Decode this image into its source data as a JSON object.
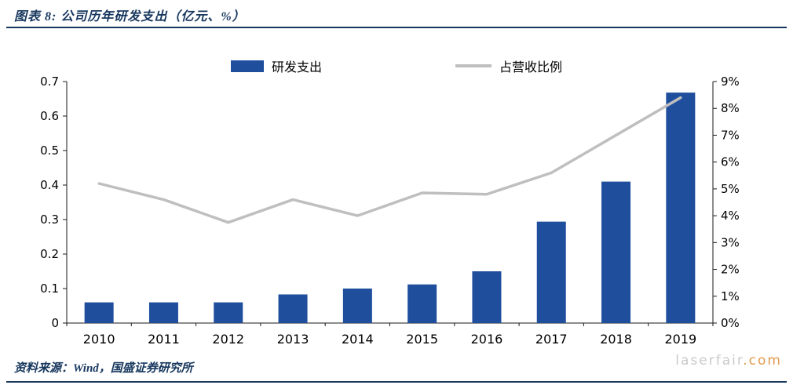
{
  "header": {
    "title": "图表 8:  公司历年研发支出（亿元、%）"
  },
  "legend": [
    {
      "label": "研发支出",
      "type": "bar"
    },
    {
      "label": "占营收比例",
      "type": "line"
    }
  ],
  "chart_data": {
    "type": "bar+line combo",
    "categories": [
      "2010",
      "2011",
      "2012",
      "2013",
      "2014",
      "2015",
      "2016",
      "2017",
      "2018",
      "2019"
    ],
    "series": [
      {
        "name": "研发支出",
        "type": "bar",
        "axis": "left",
        "values": [
          0.06,
          0.06,
          0.06,
          0.083,
          0.1,
          0.112,
          0.15,
          0.294,
          0.41,
          0.668
        ]
      },
      {
        "name": "占营收比例",
        "type": "line",
        "axis": "right",
        "values": [
          5.2,
          4.6,
          3.75,
          4.6,
          4.0,
          4.85,
          4.8,
          5.6,
          7.0,
          8.4
        ]
      }
    ],
    "left_axis": {
      "min": 0,
      "max": 0.7,
      "step": 0.1,
      "labels": [
        "0",
        "0.1",
        "0.2",
        "0.3",
        "0.4",
        "0.5",
        "0.6",
        "0.7"
      ]
    },
    "right_axis": {
      "min": 0,
      "max": 9,
      "step": 1,
      "labels": [
        "0%",
        "1%",
        "2%",
        "3%",
        "4%",
        "5%",
        "6%",
        "7%",
        "8%",
        "9%"
      ]
    },
    "grid": false,
    "legend_position": "top",
    "colors": {
      "bar": "#1F4E9D",
      "line": "#BFBFBF",
      "accent": "#17375E"
    }
  },
  "footer": {
    "source": "资料来源：Wind，国盛证券研究所"
  },
  "watermark": {
    "name": "laserfair",
    "tld": ".com"
  }
}
